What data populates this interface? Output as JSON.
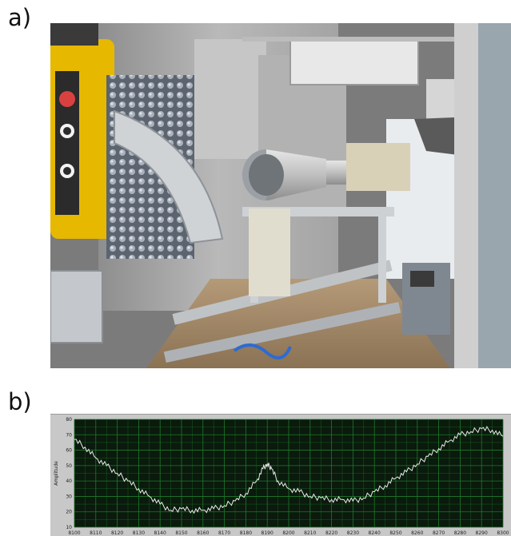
{
  "panels": {
    "a_label": "a)",
    "b_label": "b)"
  },
  "chart_data": {
    "type": "line",
    "title": "",
    "xlabel": "",
    "ylabel": "Amplitude",
    "xlim": [
      8100,
      8300
    ],
    "ylim": [
      10,
      80
    ],
    "x_ticks": [
      8100,
      8110,
      8120,
      8130,
      8140,
      8150,
      8160,
      8170,
      8180,
      8190,
      8200,
      8210,
      8220,
      8230,
      8240,
      8250,
      8260,
      8270,
      8280,
      8290,
      8300
    ],
    "y_ticks": [
      10,
      20,
      30,
      40,
      50,
      60,
      70,
      80
    ],
    "grid": true,
    "background_color": "#0a1a0c",
    "grid_color": "#1f7a2a",
    "line_color": "#e8e8e8",
    "series": [
      {
        "x": [
          8100,
          8105,
          8110,
          8115,
          8120,
          8125,
          8130,
          8135,
          8140,
          8145,
          8150,
          8155,
          8160,
          8165,
          8170,
          8175,
          8180,
          8185,
          8188,
          8190,
          8192,
          8195,
          8200,
          8205,
          8210,
          8215,
          8220,
          8225,
          8230,
          8235,
          8240,
          8245,
          8250,
          8255,
          8260,
          8265,
          8270,
          8275,
          8280,
          8285,
          8290,
          8295,
          8300
        ],
        "y": [
          67,
          62,
          55,
          50,
          45,
          40,
          35,
          30,
          25,
          21,
          22,
          21,
          21,
          22,
          24,
          27,
          32,
          40,
          48,
          51,
          48,
          40,
          35,
          33,
          30,
          29,
          28,
          28,
          27,
          29,
          33,
          37,
          42,
          46,
          51,
          56,
          61,
          66,
          70,
          72,
          74,
          73,
          69
        ]
      }
    ]
  }
}
